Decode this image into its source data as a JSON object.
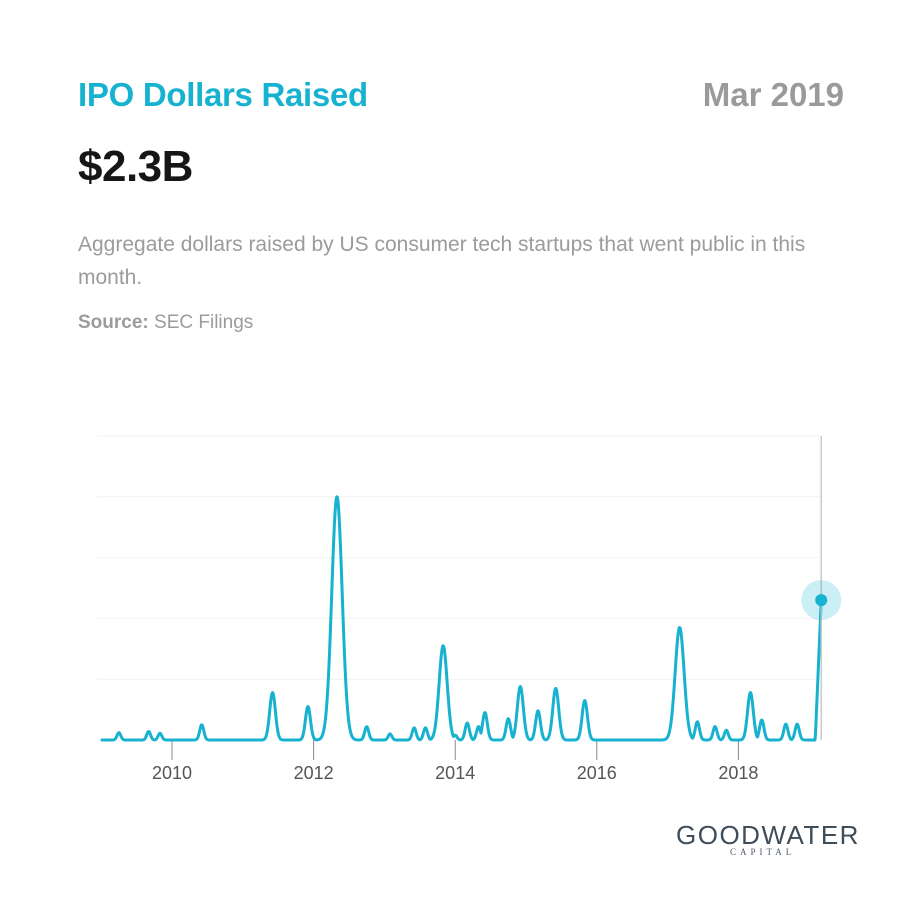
{
  "header": {
    "title": "IPO Dollars Raised",
    "date": "Mar 2019",
    "value": "$2.3B",
    "description": "Aggregate dollars raised by US consumer tech startups that went public in this month.",
    "source_label": "Source:",
    "source_value": "SEC Filings"
  },
  "logo": {
    "main": "GOODWATER",
    "sub": "CAPITAL"
  },
  "colors": {
    "accent": "#17b2d0",
    "grid": "#f2f2f2",
    "axis": "#888888"
  },
  "chart_data": {
    "type": "line",
    "title": "IPO Dollars Raised",
    "xlabel": "",
    "ylabel": "",
    "xlim": [
      2009.0,
      2019.3
    ],
    "ylim": [
      0,
      5
    ],
    "y_unit": "$B",
    "grid": true,
    "y_gridlines": [
      1,
      2,
      3,
      4,
      5
    ],
    "x_ticks": [
      2010,
      2012,
      2014,
      2016,
      2018
    ],
    "highlight": {
      "x": 2019.17,
      "y": 2.3,
      "label": "Mar 2019"
    },
    "series": [
      {
        "x": [
          2009.25,
          2009.67,
          2009.83,
          2010.42,
          2011.42,
          2011.92,
          2012.17,
          2012.33,
          2012.5,
          2012.75,
          2013.08,
          2013.42,
          2013.58,
          2013.83,
          2014.0,
          2014.17,
          2014.33,
          2014.42,
          2014.75,
          2014.92,
          2015.17,
          2015.42,
          2015.83,
          2017.17,
          2017.42,
          2017.67,
          2017.83,
          2018.17,
          2018.33,
          2018.67,
          2018.83,
          2019.17
        ],
        "y": [
          0.12,
          0.14,
          0.11,
          0.25,
          0.78,
          0.55,
          0.2,
          4.0,
          0.08,
          0.22,
          0.1,
          0.2,
          0.2,
          1.55,
          0.08,
          0.28,
          0.22,
          0.45,
          0.35,
          0.88,
          0.48,
          0.85,
          0.65,
          1.85,
          0.3,
          0.22,
          0.16,
          0.78,
          0.33,
          0.26,
          0.26,
          2.3
        ]
      }
    ]
  }
}
